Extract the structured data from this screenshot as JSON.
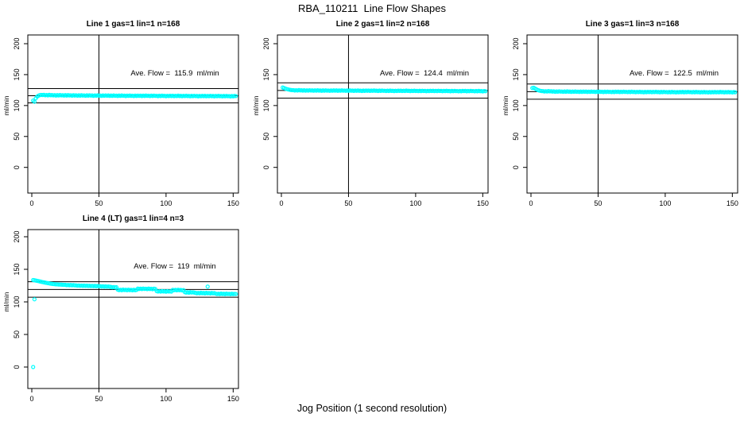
{
  "title": "RBA_110211  Line Flow Shapes",
  "xlabel": "Jog Position (1 second resolution)",
  "marker_color": "#00FFFF",
  "chart_data": [
    {
      "type": "scatter",
      "title": "Line 1 gas=1 lin=1 n=168",
      "ylabel": "ml/min",
      "annotation": "Ave. Flow =  115.9  ml/min",
      "avg_flow": 115.9,
      "ref_lines": {
        "lower": 104.3,
        "center": 115.9,
        "upper": 127.5
      },
      "x_ticks": [
        0,
        50,
        100,
        150
      ],
      "y_ticks": [
        0,
        50,
        100,
        150,
        200
      ],
      "vline_x": 50,
      "x_start": 1,
      "x_step": 1,
      "y": [
        108.0,
        106.2,
        111.8,
        114.5,
        116.0,
        116.8,
        117.2,
        117.0,
        117.3,
        116.6,
        117.1,
        116.5,
        117.3,
        116.7,
        117.0,
        116.4,
        116.9,
        116.2,
        116.8,
        116.3,
        117.0,
        116.4,
        116.7,
        116.1,
        116.8,
        116.2,
        116.9,
        116.3,
        116.6,
        116.0,
        116.7,
        116.2,
        116.6,
        115.9,
        116.5,
        116.0,
        116.7,
        116.1,
        116.4,
        115.8,
        116.5,
        116.0,
        116.6,
        116.1,
        116.3,
        115.7,
        116.4,
        115.9,
        116.5,
        116.0,
        116.2,
        115.6,
        116.3,
        115.8,
        116.4,
        115.9,
        116.3,
        115.6,
        116.2,
        115.7,
        116.4,
        115.8,
        116.1,
        115.5,
        116.2,
        115.7,
        116.3,
        115.8,
        116.0,
        115.4,
        116.1,
        115.6,
        116.2,
        115.7,
        115.9,
        115.3,
        116.0,
        115.5,
        116.1,
        115.6,
        116.1,
        115.4,
        116.0,
        115.5,
        116.2,
        115.6,
        115.9,
        115.3,
        116.0,
        115.5,
        116.1,
        115.6,
        115.8,
        115.2,
        115.9,
        115.4,
        116.0,
        115.5,
        115.7,
        115.1,
        115.8,
        115.3,
        115.9,
        115.4,
        115.9,
        115.2,
        115.8,
        115.3,
        116.0,
        115.4,
        115.7,
        115.1,
        115.8,
        115.3,
        115.9,
        115.4,
        115.6,
        115.0,
        115.7,
        115.2,
        115.8,
        115.3,
        115.5,
        114.9,
        115.6,
        115.1,
        115.7,
        115.2,
        115.7,
        115.0,
        115.6,
        115.1,
        115.8,
        115.2,
        115.5,
        114.9,
        115.6,
        115.1,
        115.7,
        115.2,
        115.4,
        114.8,
        115.5,
        115.0,
        115.6,
        115.1,
        115.3,
        114.7,
        115.4,
        114.9,
        115.5,
        115.3
      ],
      "extra_points": []
    },
    {
      "type": "scatter",
      "title": "Line 2 gas=1 lin=2 n=168",
      "ylabel": "ml/min",
      "annotation": "Ave. Flow =  124.4  ml/min",
      "avg_flow": 124.4,
      "ref_lines": {
        "lower": 112.0,
        "center": 124.4,
        "upper": 136.8
      },
      "x_ticks": [
        0,
        50,
        100,
        150
      ],
      "y_ticks": [
        0,
        50,
        100,
        150,
        200
      ],
      "vline_x": 50,
      "x_start": 1,
      "x_step": 1,
      "y": [
        129.2,
        128.2,
        127.4,
        126.7,
        126.1,
        125.6,
        125.2,
        124.9,
        124.9,
        124.4,
        124.8,
        124.3,
        125.0,
        124.5,
        124.7,
        124.2,
        124.7,
        124.1,
        124.6,
        124.2,
        124.8,
        124.3,
        124.5,
        124.0,
        124.6,
        124.1,
        124.7,
        124.2,
        124.4,
        123.9,
        124.5,
        124.0,
        124.6,
        124.1,
        124.3,
        123.8,
        124.4,
        124.0,
        124.5,
        124.1,
        124.5,
        123.9,
        124.4,
        124.0,
        124.6,
        124.1,
        124.3,
        123.8,
        124.4,
        123.9,
        124.5,
        124.0,
        124.2,
        123.7,
        124.3,
        123.8,
        124.4,
        123.9,
        124.1,
        123.6,
        124.2,
        123.7,
        124.3,
        123.9,
        124.3,
        123.7,
        124.2,
        123.8,
        124.4,
        123.9,
        124.1,
        123.6,
        124.2,
        123.7,
        124.3,
        123.8,
        124.0,
        123.5,
        124.1,
        123.6,
        124.2,
        123.7,
        123.9,
        123.4,
        124.0,
        123.5,
        124.1,
        123.7,
        124.1,
        123.5,
        124.0,
        123.6,
        124.2,
        123.7,
        123.9,
        123.4,
        124.0,
        123.5,
        124.1,
        123.6,
        123.8,
        123.3,
        123.9,
        123.4,
        124.0,
        123.5,
        123.7,
        123.2,
        123.8,
        123.3,
        123.9,
        123.5,
        123.9,
        123.3,
        123.8,
        123.4,
        124.0,
        123.5,
        123.7,
        123.2,
        123.8,
        123.3,
        123.9,
        123.4,
        123.6,
        123.1,
        123.7,
        123.2,
        123.8,
        123.3,
        123.5,
        123.0,
        123.6,
        123.1,
        123.7,
        123.3,
        123.7,
        123.1,
        123.6,
        123.2,
        123.8,
        123.3,
        123.5,
        123.0,
        123.6,
        123.1,
        123.7,
        123.2,
        123.4,
        122.9,
        123.5,
        123.2
      ],
      "extra_points": []
    },
    {
      "type": "scatter",
      "title": "Line 3 gas=1 lin=3 n=168",
      "ylabel": "ml/min",
      "annotation": "Ave. Flow =  122.5  ml/min",
      "avg_flow": 122.5,
      "ref_lines": {
        "lower": 110.3,
        "center": 122.5,
        "upper": 134.8
      },
      "x_ticks": [
        0,
        50,
        100,
        150
      ],
      "y_ticks": [
        0,
        50,
        100,
        150,
        200
      ],
      "vline_x": 50,
      "x_start": 1,
      "x_step": 1,
      "y": [
        128.3,
        128.8,
        127.6,
        126.3,
        125.2,
        124.4,
        123.8,
        123.4,
        123.3,
        122.8,
        123.2,
        122.7,
        123.4,
        122.9,
        123.1,
        122.6,
        122.9,
        122.3,
        122.8,
        122.4,
        123.0,
        122.5,
        122.7,
        122.2,
        122.8,
        122.3,
        122.9,
        122.4,
        122.6,
        122.1,
        122.7,
        122.2,
        122.8,
        122.3,
        122.5,
        122.0,
        122.6,
        122.1,
        122.7,
        122.3,
        122.6,
        122.0,
        122.5,
        122.1,
        122.7,
        122.2,
        122.4,
        121.9,
        122.5,
        122.0,
        122.6,
        122.1,
        122.3,
        121.8,
        122.4,
        121.9,
        122.5,
        122.0,
        122.2,
        121.7,
        122.3,
        121.8,
        122.4,
        122.0,
        122.4,
        121.8,
        122.3,
        121.9,
        122.5,
        122.0,
        122.2,
        121.7,
        122.3,
        121.8,
        122.4,
        121.9,
        122.1,
        121.6,
        122.2,
        121.7,
        122.3,
        121.8,
        122.0,
        121.5,
        122.1,
        121.6,
        122.2,
        121.8,
        122.2,
        121.6,
        122.1,
        121.7,
        122.3,
        121.8,
        122.0,
        121.5,
        122.1,
        121.6,
        122.2,
        121.7,
        121.9,
        121.4,
        122.0,
        121.5,
        122.1,
        121.6,
        121.8,
        121.3,
        121.9,
        121.4,
        122.0,
        121.6,
        122.1,
        121.5,
        122.0,
        121.6,
        122.2,
        121.7,
        121.9,
        121.4,
        122.0,
        121.5,
        122.1,
        121.6,
        121.8,
        121.3,
        121.9,
        121.4,
        122.0,
        121.5,
        121.7,
        121.2,
        121.8,
        121.3,
        121.9,
        121.5,
        122.0,
        121.4,
        121.9,
        121.5,
        122.1,
        121.6,
        121.8,
        121.3,
        121.9,
        121.4,
        122.0,
        121.5,
        121.7,
        121.2,
        121.8,
        121.5
      ],
      "extra_points": []
    },
    {
      "type": "scatter",
      "title": "Line 4 (LT) gas=1 lin=4 n=3",
      "ylabel": "ml/min",
      "annotation": "Ave. Flow =  119  ml/min",
      "avg_flow": 119,
      "ref_lines": {
        "lower": 107.1,
        "center": 119,
        "upper": 130.9
      },
      "x_ticks": [
        0,
        50,
        100,
        150
      ],
      "y_ticks": [
        0,
        50,
        100,
        150,
        200
      ],
      "vline_x": 50,
      "x_start": 1,
      "x_step": 1,
      "y": [
        133.6,
        133.2,
        132.8,
        132.3,
        131.9,
        131.4,
        130.9,
        130.4,
        130.0,
        129.6,
        129.2,
        128.8,
        128.4,
        128.0,
        127.7,
        127.4,
        127.2,
        127.0,
        126.9,
        126.7,
        126.6,
        126.5,
        126.4,
        126.3,
        126.2,
        125.7,
        126.0,
        125.6,
        125.9,
        125.5,
        125.8,
        125.4,
        125.4,
        124.9,
        125.2,
        124.8,
        125.1,
        124.7,
        125.0,
        124.6,
        124.9,
        124.5,
        124.8,
        124.3,
        124.6,
        124.2,
        124.5,
        124.1,
        124.4,
        124.0,
        124.1,
        123.6,
        123.9,
        123.5,
        123.8,
        123.4,
        123.7,
        123.3,
        123.0,
        122.4,
        122.8,
        122.3,
        122.6,
        118.9,
        118.1,
        118.7,
        118.0,
        118.9,
        118.2,
        118.6,
        117.9,
        118.8,
        118.1,
        118.5,
        117.8,
        118.7,
        118.0,
        118.4,
        120.4,
        119.8,
        120.3,
        119.7,
        120.5,
        119.9,
        120.2,
        119.6,
        120.4,
        119.8,
        120.1,
        119.5,
        120.3,
        119.9,
        116.5,
        115.9,
        116.4,
        115.8,
        116.6,
        116.0,
        116.3,
        115.7,
        116.5,
        115.9,
        116.2,
        115.8,
        118.5,
        117.9,
        118.4,
        117.8,
        118.6,
        118.0,
        118.3,
        117.7,
        118.2,
        114.9,
        114.3,
        114.8,
        114.2,
        115.0,
        114.4,
        114.7,
        114.3,
        113.9,
        113.3,
        113.8,
        113.2,
        114.0,
        113.4,
        113.7,
        113.1,
        113.9,
        113.3,
        113.6,
        113.0,
        113.8,
        113.2,
        113.5,
        112.7,
        112.1,
        112.6,
        112.0,
        112.8,
        112.2,
        112.5,
        111.9,
        112.7,
        112.1,
        112.4,
        111.8,
        112.6,
        112.0,
        112.3,
        112.1
      ],
      "extra_points": [
        [
          1,
          0
        ],
        [
          2,
          104
        ],
        [
          131,
          123.5
        ]
      ]
    }
  ]
}
